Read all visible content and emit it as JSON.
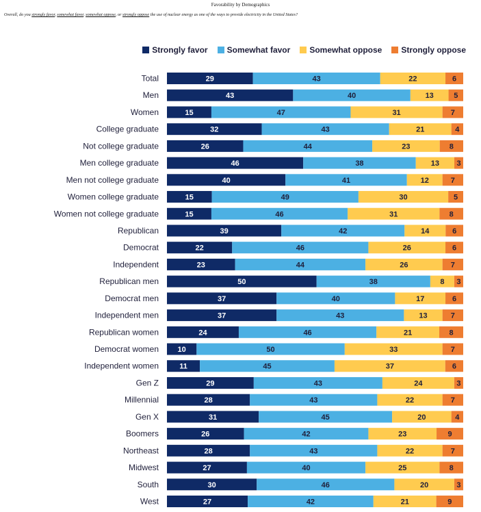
{
  "header": {
    "title": "Favorability by Demographics",
    "question_parts": [
      {
        "text": "Overall, do you ",
        "u": false
      },
      {
        "text": "strongly favor",
        "u": true
      },
      {
        "text": ", ",
        "u": false
      },
      {
        "text": "somewhat favor",
        "u": true
      },
      {
        "text": ", ",
        "u": false
      },
      {
        "text": "somewhat oppose",
        "u": true
      },
      {
        "text": ", or ",
        "u": false
      },
      {
        "text": "strongly oppose",
        "u": true
      },
      {
        "text": " the use of nuclear energy as one of the ways to provide electricity in the United States?",
        "u": false
      }
    ]
  },
  "chart_data": {
    "type": "bar",
    "orientation": "horizontal",
    "stacked": true,
    "legend_position": "top-right",
    "grid": false,
    "xlim": [
      0,
      100
    ],
    "categories": [
      "Total",
      "Men",
      "Women",
      "College graduate",
      "Not college graduate",
      "Men college graduate",
      "Men not college graduate",
      "Women college graduate",
      "Women not college graduate",
      "Republican",
      "Democrat",
      "Independent",
      "Republican men",
      "Democrat men",
      "Independent men",
      "Republican women",
      "Democrat women",
      "Independent women",
      "Gen Z",
      "Millennial",
      "Gen X",
      "Boomers",
      "Northeast",
      "Midwest",
      "South",
      "West"
    ],
    "series": [
      {
        "name": "Strongly favor",
        "color": "#0f2a66",
        "label_color": "#ffffff",
        "values": [
          29,
          43,
          15,
          32,
          26,
          46,
          40,
          15,
          15,
          39,
          22,
          23,
          50,
          37,
          37,
          24,
          10,
          11,
          29,
          28,
          31,
          26,
          28,
          27,
          30,
          27
        ]
      },
      {
        "name": "Somewhat favor",
        "color": "#4cb0e3",
        "label_color": "#1f1f3a",
        "values": [
          43,
          40,
          47,
          43,
          44,
          38,
          41,
          49,
          46,
          42,
          46,
          44,
          38,
          40,
          43,
          46,
          50,
          45,
          43,
          43,
          45,
          42,
          43,
          40,
          46,
          42
        ]
      },
      {
        "name": "Somewhat oppose",
        "color": "#ffcb4f",
        "label_color": "#1f1f3a",
        "values": [
          22,
          13,
          31,
          21,
          23,
          13,
          12,
          30,
          31,
          14,
          26,
          26,
          8,
          17,
          13,
          21,
          33,
          37,
          24,
          22,
          20,
          23,
          22,
          25,
          20,
          21
        ]
      },
      {
        "name": "Strongly oppose",
        "color": "#ee7d31",
        "label_color": "#1f1f3a",
        "values": [
          6,
          5,
          7,
          4,
          8,
          3,
          7,
          5,
          8,
          6,
          6,
          7,
          3,
          6,
          7,
          8,
          7,
          6,
          3,
          7,
          4,
          9,
          7,
          8,
          3,
          9
        ]
      }
    ]
  }
}
